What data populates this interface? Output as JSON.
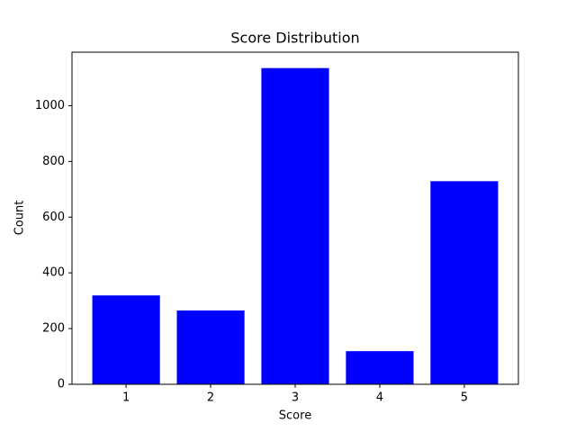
{
  "chart_data": {
    "type": "bar",
    "title": "Score Distribution",
    "x_label": "Score",
    "y_label": "Count",
    "x": [
      1,
      2,
      3,
      4,
      5
    ],
    "values": [
      319,
      265,
      1135,
      119,
      729
    ],
    "color": "#0000ff",
    "xlim": [
      0.36,
      5.64
    ],
    "xticks": [
      1,
      2,
      3,
      4,
      5
    ],
    "ylim": [
      0,
      1192
    ],
    "yticks": [
      0,
      200,
      400,
      600,
      800,
      1000
    ],
    "grid": false
  }
}
